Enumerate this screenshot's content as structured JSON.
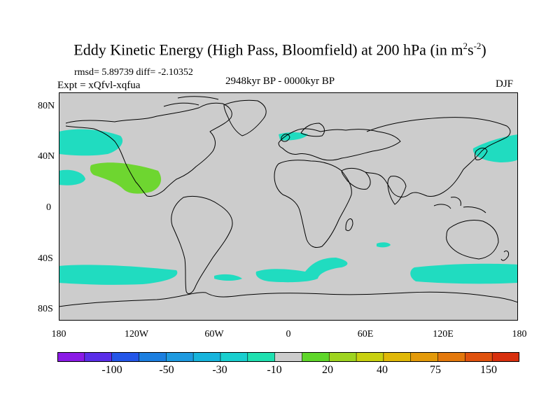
{
  "title_prefix": "Eddy Kinetic Energy (High Pass, Bloomfield) at 200 hPa (in m",
  "title_sup1": "2",
  "title_mid": "s",
  "title_sup2": "-2",
  "title_suffix": ")",
  "stats": "rmsd= 5.89739 diff= -2.10352",
  "experiment": "Expt = xQfvl-xqfua",
  "period": "2948kyr BP - 0000kyr BP",
  "season": "DJF",
  "lat_labels": [
    "80N",
    "40N",
    "0",
    "40S",
    "80S"
  ],
  "lon_labels": [
    "180",
    "120W",
    "60W",
    "0",
    "60E",
    "120E",
    "180"
  ],
  "colorbar": {
    "colors": [
      "#8b1ae6",
      "#5a2ee8",
      "#2456e8",
      "#1c7fe0",
      "#1e9ae0",
      "#17b4dc",
      "#19cfcf",
      "#1fe0b0",
      "#cccccc",
      "#5fd62a",
      "#9ed420",
      "#c8d010",
      "#e0b808",
      "#e39a0a",
      "#e3780c",
      "#e0520e",
      "#d8300e"
    ],
    "labels": [
      "-100",
      "-50",
      "-30",
      "-10",
      "20",
      "40",
      "75",
      "150"
    ]
  },
  "colors": {
    "land_ocean": "#cccccc",
    "neg_fill": "#20dcc0",
    "pos_fill": "#6ed630",
    "coast": "#000000"
  }
}
